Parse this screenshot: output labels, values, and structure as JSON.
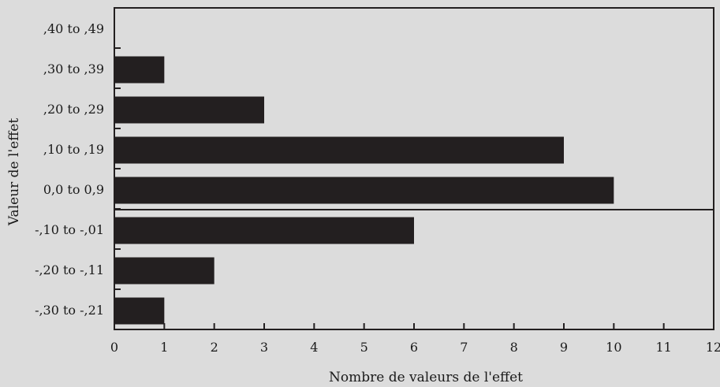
{
  "colors": {
    "background": "#dcdcdc",
    "bar": "#231f20",
    "axis": "#231f20"
  },
  "chart_data": {
    "type": "bar",
    "orientation": "horizontal",
    "categories": [
      ",40 to ,49",
      ",30 to ,39",
      ",20 to ,29",
      ",10 to ,19",
      "0,0 to 0,9",
      "-,10 to -,01",
      "-,20 to -,11",
      "-,30 to -,21"
    ],
    "values": [
      0,
      1,
      3,
      9,
      10,
      6,
      2,
      1
    ],
    "xticks": [
      "0",
      "1",
      "2",
      "3",
      "4",
      "5",
      "6",
      "7",
      "8",
      "9",
      "10",
      "11",
      "12"
    ],
    "xlim": [
      0,
      12
    ],
    "xlabel": "Nombre de valeurs de l'effet",
    "ylabel": "Valeur de l'effet",
    "reference_line_after_category": "0,0 to 0,9",
    "grid": false,
    "legend": "none"
  }
}
